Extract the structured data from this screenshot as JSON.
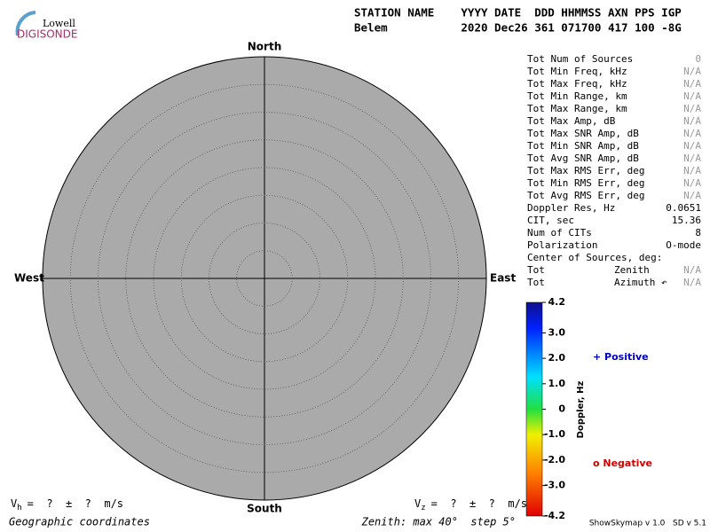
{
  "logo": {
    "top": "Lowell",
    "bottom": "DIGISONDE"
  },
  "header": {
    "labels": "STATION NAME    YYYY DATE  DDD HHMMSS AXN PPS IGP",
    "values": "Belem           2020 Dec26 361 071700 417 100 -8G"
  },
  "skymap": {
    "north": "North",
    "south": "South",
    "west": "West",
    "east": "East"
  },
  "stats": {
    "rows": [
      {
        "label": "Tot Num of Sources",
        "value": "0",
        "color": "#999999"
      },
      {
        "label": "Tot Min Freq, kHz",
        "value": "N/A",
        "color": "#999999"
      },
      {
        "label": "Tot Max Freq, kHz",
        "value": "N/A",
        "color": "#999999"
      },
      {
        "label": "Tot Min Range, km",
        "value": "N/A",
        "color": "#999999"
      },
      {
        "label": "Tot Max Range, km",
        "value": "N/A",
        "color": "#999999"
      },
      {
        "label": "Tot Max Amp, dB",
        "value": "N/A",
        "color": "#999999"
      },
      {
        "label": "Tot Max SNR Amp, dB",
        "value": "N/A",
        "color": "#999999"
      },
      {
        "label": "Tot Min SNR Amp, dB",
        "value": "N/A",
        "color": "#999999"
      },
      {
        "label": "Tot Avg SNR Amp, dB",
        "value": "N/A",
        "color": "#999999"
      },
      {
        "label": "Tot Max RMS Err, deg",
        "value": "N/A",
        "color": "#999999"
      },
      {
        "label": "Tot Min RMS Err, deg",
        "value": "N/A",
        "color": "#999999"
      },
      {
        "label": "Tot Avg RMS Err, deg",
        "value": "N/A",
        "color": "#999999"
      },
      {
        "label": "Doppler Res, Hz",
        "value": "0.0651",
        "color": "#000000"
      },
      {
        "label": "CIT, sec",
        "value": "15.36",
        "color": "#000000"
      },
      {
        "label": "Num of CITs",
        "value": "8",
        "color": "#000000"
      },
      {
        "label": "Polarization",
        "value": "O-mode",
        "color": "#000000"
      }
    ],
    "center_title": "Center of Sources, deg:",
    "center_rows": [
      {
        "prefix": "Tot",
        "label": "Zenith",
        "value": "N/A",
        "color": "#999999"
      },
      {
        "prefix": "Tot",
        "label": "Azimuth ↶",
        "value": "N/A",
        "color": "#999999"
      }
    ]
  },
  "colorbar": {
    "title": "Doppler, Hz",
    "lim": [
      -4.2,
      4.2
    ],
    "ticks": [
      4.2,
      {
        "value": 3,
        "label": "3.0"
      },
      {
        "value": 2,
        "label": "2.0"
      },
      {
        "value": 1,
        "label": "1.0"
      },
      0,
      {
        "value": -1,
        "label": "-1.0"
      },
      {
        "value": -2,
        "label": "-2.0"
      },
      {
        "value": -3,
        "label": "-3.0"
      },
      -4.2
    ],
    "positive": "+ Positive",
    "negative": "o Negative"
  },
  "footer": {
    "vh": {
      "symbol": "V",
      "sub": "h",
      "text": "=  ?  ±  ?  m/s"
    },
    "vz": {
      "symbol": "V",
      "sub": "z",
      "text": "=  ?  ±  ?  m/s"
    },
    "coords": "Geographic coordinates",
    "zenith": "Zenith: max 40°  step 5°",
    "version": "ShowSkymap v 1.0   SD v 5.1"
  }
}
